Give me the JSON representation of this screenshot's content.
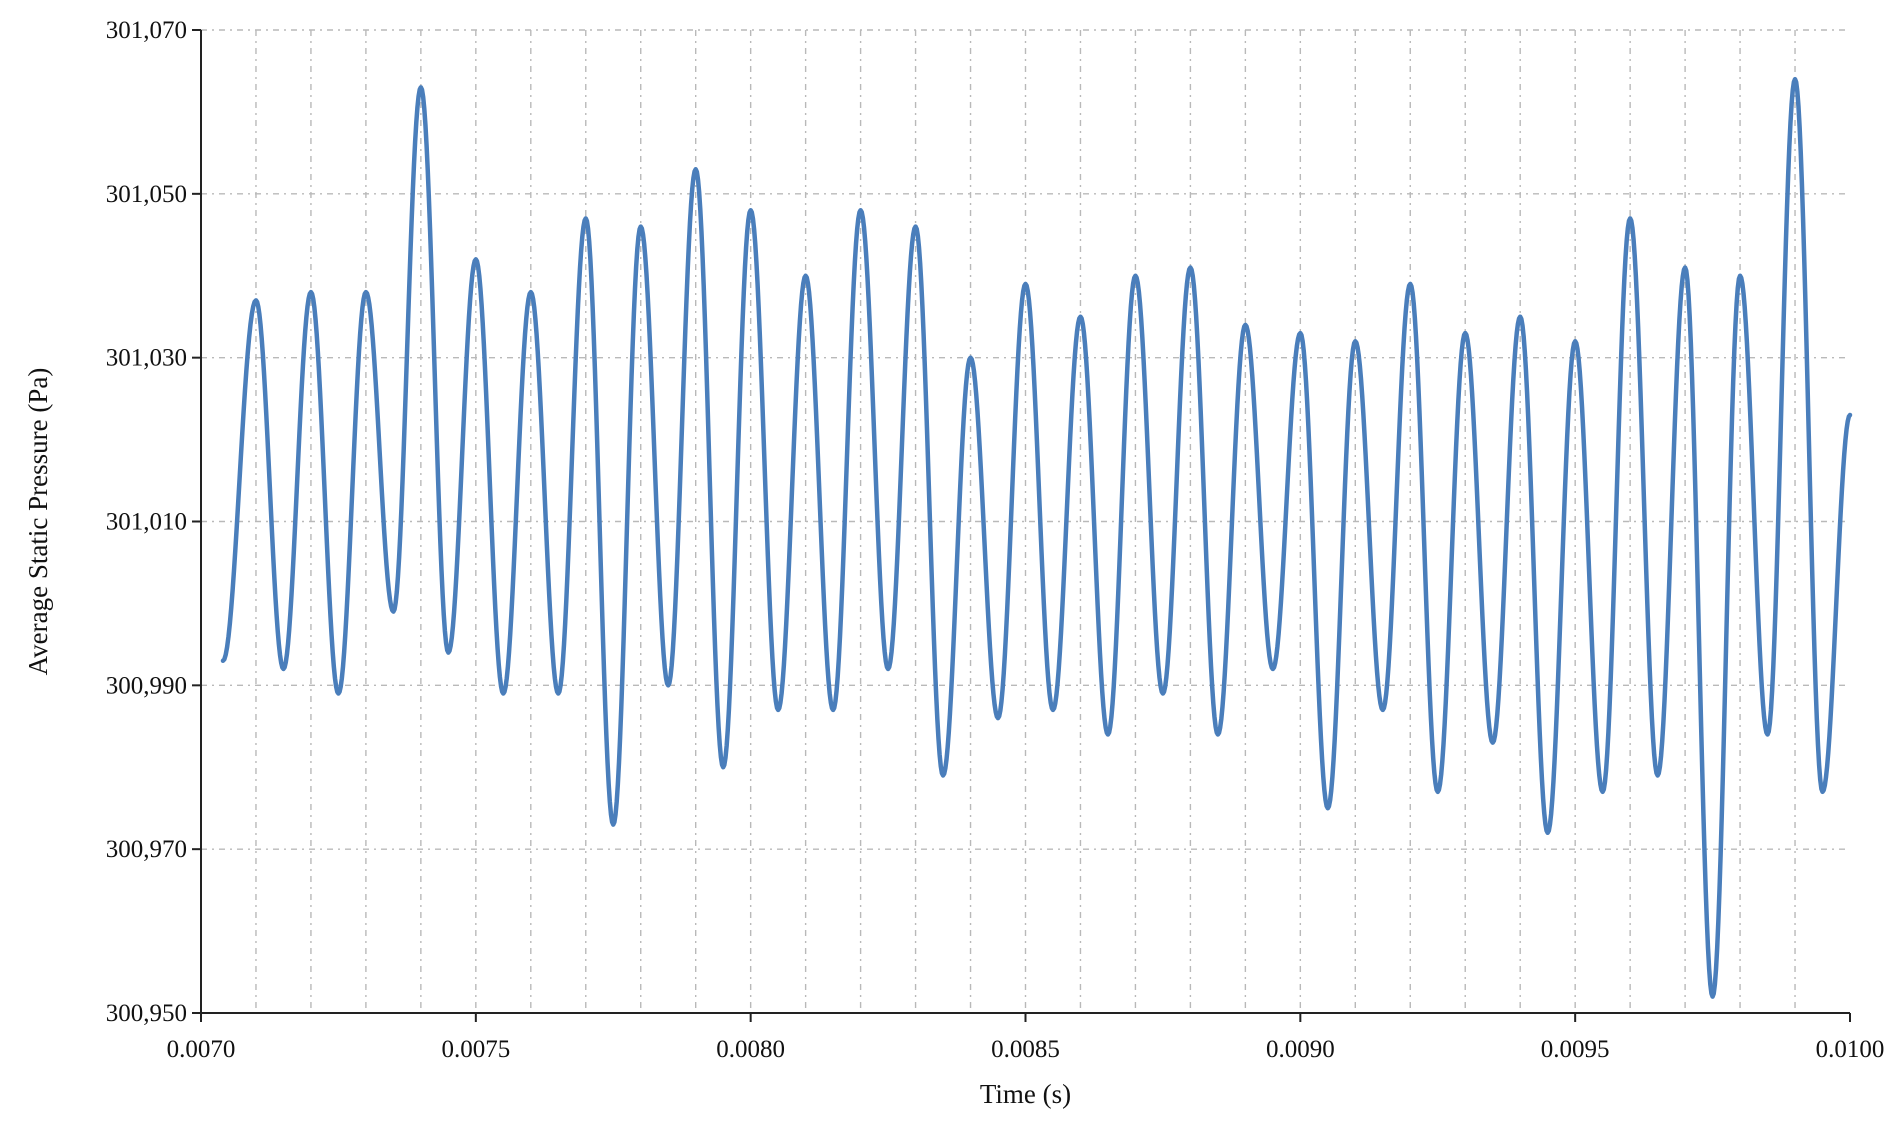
{
  "chart_data": {
    "type": "line",
    "title": "",
    "xlabel": "Time (s)",
    "ylabel": "Average Static Pressure (Pa)",
    "xlim": [
      0.007,
      0.01
    ],
    "ylim": [
      300950,
      301070
    ],
    "x_ticks": [
      0.007,
      0.0075,
      0.008,
      0.0085,
      0.009,
      0.0095,
      0.01
    ],
    "x_tick_labels": [
      "0.0070",
      "0.0075",
      "0.0080",
      "0.0085",
      "0.0090",
      "0.0095",
      "0.0100"
    ],
    "x_minor_grid_step": 0.0001,
    "y_ticks": [
      300950,
      300970,
      300990,
      301010,
      301030,
      301050,
      301070
    ],
    "y_tick_labels": [
      "300,950",
      "300,970",
      "300,990",
      "301,010",
      "301,030",
      "301,050",
      "301,070"
    ],
    "grid": true,
    "grid_style": "dash-dot",
    "legend": false,
    "colors": {
      "series": "#4a7ebb",
      "grid": "#b9b9b9",
      "axis": "#222222"
    },
    "series": [
      {
        "x": [
          0.00704,
          0.0071,
          0.00715,
          0.0072,
          0.00725,
          0.0073,
          0.00735,
          0.0074,
          0.00745,
          0.0075,
          0.00755,
          0.0076,
          0.00765,
          0.0077,
          0.00775,
          0.0078,
          0.00785,
          0.0079,
          0.00795,
          0.008,
          0.00805,
          0.0081,
          0.00815,
          0.0082,
          0.00825,
          0.0083,
          0.00835,
          0.0084,
          0.00845,
          0.0085,
          0.00855,
          0.0086,
          0.00865,
          0.0087,
          0.00875,
          0.0088,
          0.00885,
          0.0089,
          0.00895,
          0.009,
          0.00905,
          0.0091,
          0.00915,
          0.0092,
          0.00925,
          0.0093,
          0.00935,
          0.0094,
          0.00945,
          0.0095,
          0.00955,
          0.0096,
          0.00965,
          0.0097,
          0.00975,
          0.0098,
          0.00985,
          0.0099,
          0.00995,
          0.01
        ],
        "values": [
          300993,
          301037,
          300992,
          301038,
          300989,
          301038,
          300999,
          301063,
          300994,
          301042,
          300989,
          301038,
          300989,
          301047,
          300973,
          301046,
          300990,
          301053,
          300980,
          301048,
          300987,
          301040,
          300987,
          301048,
          300992,
          301046,
          300979,
          301030,
          300986,
          301039,
          300987,
          301035,
          300984,
          301040,
          300989,
          301041,
          300984,
          301034,
          300992,
          301033,
          300975,
          301032,
          300987,
          301039,
          300977,
          301033,
          300983,
          301035,
          300972,
          301032,
          300977,
          301047,
          300979,
          301041,
          300952,
          301040,
          300984,
          301064,
          300977,
          301023
        ]
      }
    ]
  }
}
